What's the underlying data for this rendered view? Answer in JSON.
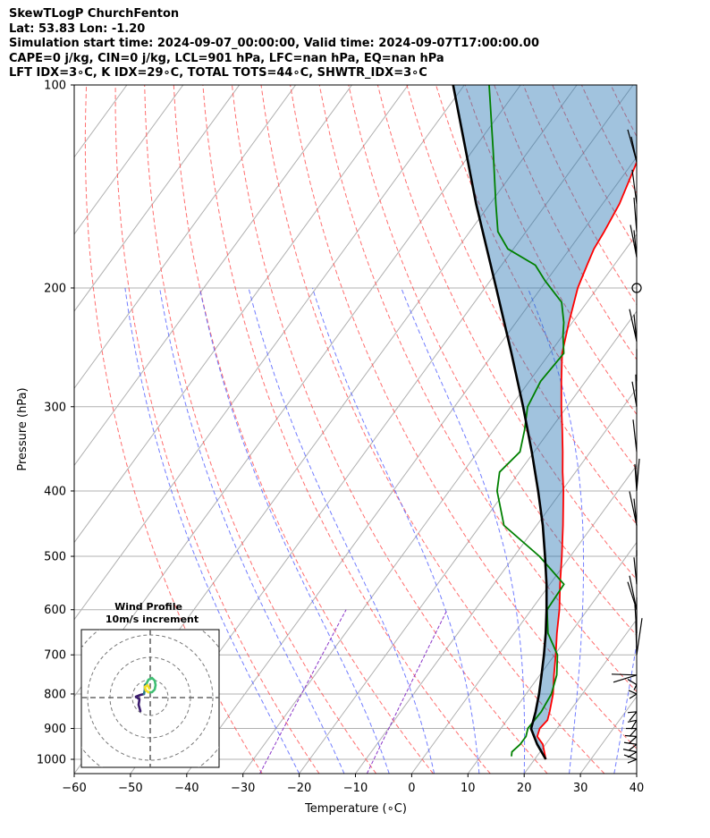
{
  "header": {
    "line1": "SkewTLogP ChurchFenton",
    "line2": "Lat: 53.83   Lon: -1.20",
    "line3": "Simulation start time: 2024-09-07_00:00:00, Valid time: 2024-09-07T17:00:00.00",
    "line4": "CAPE=0 j/kg, CIN=0 j/kg, LCL=901 hPa, LFC=nan hPa, EQ=nan hPa",
    "line5": "LFT IDX=3∘C, K IDX=29∘C, TOTAL TOTS=44∘C, SHWTR_IDX=3∘C"
  },
  "chart_data": {
    "type": "line",
    "subtype": "skew-T log-p diagram",
    "xlabel": "Temperature (∘C)",
    "ylabel": "Pressure (hPa)",
    "xlim": [
      -60,
      40
    ],
    "ylim": [
      1050,
      100
    ],
    "y_scale": "log",
    "x_ticks": [
      "−60",
      "−50",
      "−40",
      "−30",
      "−20",
      "−10",
      "0",
      "10",
      "20",
      "30",
      "40"
    ],
    "y_ticks": [
      "100",
      "200",
      "300",
      "400",
      "500",
      "600",
      "700",
      "800",
      "900",
      "1000"
    ],
    "grid": true,
    "series": [
      {
        "key": "temperature",
        "color": "#ff0000",
        "points": [
          [
            1000,
            22
          ],
          [
            950,
            19.5
          ],
          [
            925,
            17.5
          ],
          [
            900,
            16.9
          ],
          [
            875,
            17.2
          ],
          [
            850,
            16.5
          ],
          [
            800,
            14.8
          ],
          [
            750,
            12.5
          ],
          [
            700,
            10.2
          ],
          [
            650,
            7.6
          ],
          [
            600,
            5
          ],
          [
            550,
            1.8
          ],
          [
            500,
            -1.5
          ],
          [
            450,
            -5.3
          ],
          [
            400,
            -9.7
          ],
          [
            375,
            -12.3
          ],
          [
            350,
            -14.9
          ],
          [
            325,
            -17.8
          ],
          [
            300,
            -21
          ],
          [
            275,
            -24.3
          ],
          [
            250,
            -27.8
          ],
          [
            225,
            -30.6
          ],
          [
            200,
            -33.5
          ],
          [
            185,
            -34.8
          ],
          [
            175,
            -35.7
          ],
          [
            165,
            -36.1
          ],
          [
            150,
            -37
          ],
          [
            125,
            -40
          ],
          [
            110,
            -41.8
          ],
          [
            100,
            -43
          ]
        ]
      },
      {
        "key": "dewpoint",
        "color": "#008000",
        "points": [
          [
            990,
            15.5
          ],
          [
            975,
            15
          ],
          [
            950,
            15.5
          ],
          [
            925,
            15.5
          ],
          [
            900,
            14.8
          ],
          [
            850,
            15
          ],
          [
            800,
            14.5
          ],
          [
            750,
            13
          ],
          [
            700,
            10.5
          ],
          [
            650,
            6
          ],
          [
            600,
            2.8
          ],
          [
            550,
            2.5
          ],
          [
            500,
            -5.5
          ],
          [
            450,
            -15.8
          ],
          [
            400,
            -21.5
          ],
          [
            375,
            -23.5
          ],
          [
            350,
            -22.5
          ],
          [
            325,
            -24.5
          ],
          [
            300,
            -27
          ],
          [
            275,
            -28
          ],
          [
            250,
            -27.5
          ],
          [
            235,
            -30
          ],
          [
            225,
            -31.5
          ],
          [
            210,
            -34.5
          ],
          [
            195,
            -40.3
          ],
          [
            185,
            -44
          ],
          [
            175,
            -51
          ],
          [
            165,
            -55
          ],
          [
            150,
            -59
          ],
          [
            125,
            -66.4
          ],
          [
            100,
            -75.6
          ]
        ]
      },
      {
        "key": "parcel",
        "color": "#000000",
        "points": [
          [
            1000,
            22
          ],
          [
            950,
            18.5
          ],
          [
            901,
            15.4
          ],
          [
            850,
            14
          ],
          [
            800,
            12.3
          ],
          [
            750,
            10.3
          ],
          [
            700,
            8.1
          ],
          [
            650,
            5.6
          ],
          [
            600,
            2.7
          ],
          [
            550,
            -0.6
          ],
          [
            500,
            -4.5
          ],
          [
            450,
            -8.9
          ],
          [
            400,
            -14.2
          ],
          [
            350,
            -20.4
          ],
          [
            300,
            -27.8
          ],
          [
            250,
            -36.8
          ],
          [
            200,
            -48
          ],
          [
            150,
            -62.5
          ],
          [
            100,
            -82
          ]
        ]
      }
    ],
    "hodograph": {
      "title": "Wind Profile",
      "subtitle": "10m/s increment",
      "ring_increment_ms": 10
    }
  }
}
